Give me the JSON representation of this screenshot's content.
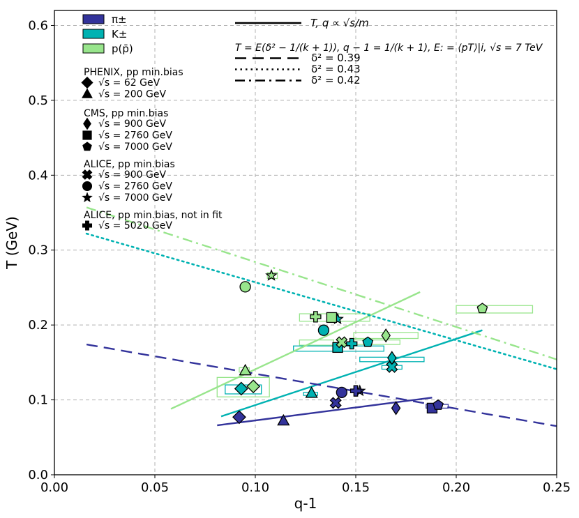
{
  "chart_data": {
    "type": "scatter",
    "xlabel": "q-1",
    "ylabel": "T (GeV)",
    "xlim": [
      0.0,
      0.25
    ],
    "ylim": [
      0.0,
      0.62
    ],
    "xticks": [
      0.0,
      0.05,
      0.1,
      0.15,
      0.2,
      0.25
    ],
    "xtick_labels": [
      "0.00",
      "0.05",
      "0.10",
      "0.15",
      "0.20",
      "0.25"
    ],
    "yticks": [
      0.0,
      0.1,
      0.2,
      0.3,
      0.4,
      0.5,
      0.6
    ],
    "ytick_labels": [
      "0.0",
      "0.1",
      "0.2",
      "0.3",
      "0.4",
      "0.5",
      "0.6"
    ],
    "grid": true,
    "colors": {
      "pion": "#33339b",
      "kaon": "#00b2b2",
      "proton": "#98e58c"
    },
    "species_legend": [
      {
        "key": "pion",
        "label": "π±"
      },
      {
        "key": "kaon",
        "label": "K±"
      },
      {
        "key": "proton",
        "label": "p(p̄)"
      }
    ],
    "marker_legend": [
      {
        "header": "PHENIX, pp min.bias",
        "items": [
          {
            "marker": "diamond",
            "label": "√s = 62 GeV"
          },
          {
            "marker": "triangle",
            "label": "√s = 200 GeV"
          }
        ]
      },
      {
        "header": "CMS, pp min.bias",
        "items": [
          {
            "marker": "thin_diamond",
            "label": "√s = 900 GeV"
          },
          {
            "marker": "square",
            "label": "√s = 2760 GeV"
          },
          {
            "marker": "pentagon",
            "label": "√s = 7000 GeV"
          }
        ]
      },
      {
        "header": "ALICE, pp min.bias",
        "items": [
          {
            "marker": "x",
            "label": "√s = 900 GeV"
          },
          {
            "marker": "circle",
            "label": "√s = 2760 GeV"
          },
          {
            "marker": "star",
            "label": "√s = 7000 GeV"
          }
        ]
      },
      {
        "header": "ALICE, pp min.bias, not in fit",
        "items": [
          {
            "marker": "plus",
            "label": "√s = 5020 GeV"
          }
        ]
      }
    ],
    "line_legend": {
      "solid_label": "T, q ∝ √s/m",
      "formula": "T = E(δ² − 1/(k + 1)), q − 1 = 1/(k + 1), E: = ⟨pT⟩|i, √s = 7 TeV",
      "entries": [
        {
          "style": "dashed",
          "label": "δ² = 0.39"
        },
        {
          "style": "dotted",
          "label": "δ² = 0.43"
        },
        {
          "style": "dashdot",
          "label": "δ² = 0.42"
        }
      ]
    },
    "lines": [
      {
        "species": "pion",
        "style": "solid",
        "x": [
          0.081,
          0.188
        ],
        "y": [
          0.066,
          0.103
        ]
      },
      {
        "species": "kaon",
        "style": "solid",
        "x": [
          0.083,
          0.213
        ],
        "y": [
          0.078,
          0.193
        ]
      },
      {
        "species": "proton",
        "style": "solid",
        "x": [
          0.058,
          0.182
        ],
        "y": [
          0.088,
          0.244
        ]
      },
      {
        "species": "pion",
        "style": "dashed",
        "x": [
          0.016,
          0.25
        ],
        "y": [
          0.174,
          0.065
        ]
      },
      {
        "species": "kaon",
        "style": "dotted",
        "x": [
          0.016,
          0.25
        ],
        "y": [
          0.322,
          0.141
        ]
      },
      {
        "species": "proton",
        "style": "dashdot",
        "x": [
          0.016,
          0.25
        ],
        "y": [
          0.357,
          0.154
        ]
      }
    ],
    "boxes": [
      {
        "species": "proton",
        "x": [
          0.081,
          0.107
        ],
        "y": [
          0.104,
          0.13
        ]
      },
      {
        "species": "proton",
        "x": [
          0.092,
          0.097
        ],
        "y": [
          0.137,
          0.143
        ]
      },
      {
        "species": "proton",
        "x": [
          0.122,
          0.157
        ],
        "y": [
          0.205,
          0.215
        ]
      },
      {
        "species": "proton",
        "x": [
          0.122,
          0.139
        ],
        "y": [
          0.173,
          0.18
        ]
      },
      {
        "species": "proton",
        "x": [
          0.149,
          0.181
        ],
        "y": [
          0.182,
          0.19
        ]
      },
      {
        "species": "proton",
        "x": [
          0.148,
          0.172
        ],
        "y": [
          0.174,
          0.18
        ]
      },
      {
        "species": "proton",
        "x": [
          0.106,
          0.111
        ],
        "y": [
          0.262,
          0.27
        ]
      },
      {
        "species": "proton",
        "x": [
          0.2,
          0.238
        ],
        "y": [
          0.216,
          0.226
        ]
      },
      {
        "species": "kaon",
        "x": [
          0.085,
          0.103
        ],
        "y": [
          0.108,
          0.12
        ]
      },
      {
        "species": "kaon",
        "x": [
          0.119,
          0.164
        ],
        "y": [
          0.165,
          0.172
        ]
      },
      {
        "species": "kaon",
        "x": [
          0.152,
          0.184
        ],
        "y": [
          0.151,
          0.157
        ]
      },
      {
        "species": "kaon",
        "x": [
          0.163,
          0.173
        ],
        "y": [
          0.141,
          0.146
        ]
      },
      {
        "species": "kaon",
        "x": [
          0.124,
          0.131
        ],
        "y": [
          0.106,
          0.11
        ]
      },
      {
        "species": "pion",
        "x": [
          0.185,
          0.196
        ],
        "y": [
          0.089,
          0.094
        ]
      }
    ],
    "points": [
      {
        "species": "pion",
        "marker": "diamond",
        "x": 0.092,
        "y": 0.077
      },
      {
        "species": "pion",
        "marker": "triangle",
        "x": 0.114,
        "y": 0.072
      },
      {
        "species": "pion",
        "marker": "thin_diamond",
        "x": 0.17,
        "y": 0.089
      },
      {
        "species": "pion",
        "marker": "square",
        "x": 0.188,
        "y": 0.089
      },
      {
        "species": "pion",
        "marker": "pentagon",
        "x": 0.191,
        "y": 0.093
      },
      {
        "species": "pion",
        "marker": "x",
        "x": 0.14,
        "y": 0.096
      },
      {
        "species": "pion",
        "marker": "circle",
        "x": 0.143,
        "y": 0.11
      },
      {
        "species": "pion",
        "marker": "star",
        "x": 0.152,
        "y": 0.112
      },
      {
        "species": "pion",
        "marker": "plus",
        "x": 0.15,
        "y": 0.112
      },
      {
        "species": "kaon",
        "marker": "diamond",
        "x": 0.093,
        "y": 0.115
      },
      {
        "species": "kaon",
        "marker": "triangle",
        "x": 0.128,
        "y": 0.109
      },
      {
        "species": "kaon",
        "marker": "thin_diamond",
        "x": 0.168,
        "y": 0.156
      },
      {
        "species": "kaon",
        "marker": "square",
        "x": 0.141,
        "y": 0.17
      },
      {
        "species": "kaon",
        "marker": "pentagon",
        "x": 0.156,
        "y": 0.177
      },
      {
        "species": "kaon",
        "marker": "x",
        "x": 0.168,
        "y": 0.144
      },
      {
        "species": "kaon",
        "marker": "circle",
        "x": 0.134,
        "y": 0.193
      },
      {
        "species": "kaon",
        "marker": "star",
        "x": 0.141,
        "y": 0.208
      },
      {
        "species": "kaon",
        "marker": "plus",
        "x": 0.148,
        "y": 0.175
      },
      {
        "species": "proton",
        "marker": "diamond",
        "x": 0.099,
        "y": 0.118
      },
      {
        "species": "proton",
        "marker": "triangle",
        "x": 0.095,
        "y": 0.139
      },
      {
        "species": "proton",
        "marker": "thin_diamond",
        "x": 0.165,
        "y": 0.186
      },
      {
        "species": "proton",
        "marker": "square",
        "x": 0.138,
        "y": 0.21
      },
      {
        "species": "proton",
        "marker": "pentagon",
        "x": 0.213,
        "y": 0.222
      },
      {
        "species": "proton",
        "marker": "x",
        "x": 0.143,
        "y": 0.177
      },
      {
        "species": "proton",
        "marker": "circle",
        "x": 0.095,
        "y": 0.251
      },
      {
        "species": "proton",
        "marker": "star",
        "x": 0.108,
        "y": 0.266
      },
      {
        "species": "proton",
        "marker": "plus",
        "x": 0.13,
        "y": 0.211
      }
    ]
  }
}
